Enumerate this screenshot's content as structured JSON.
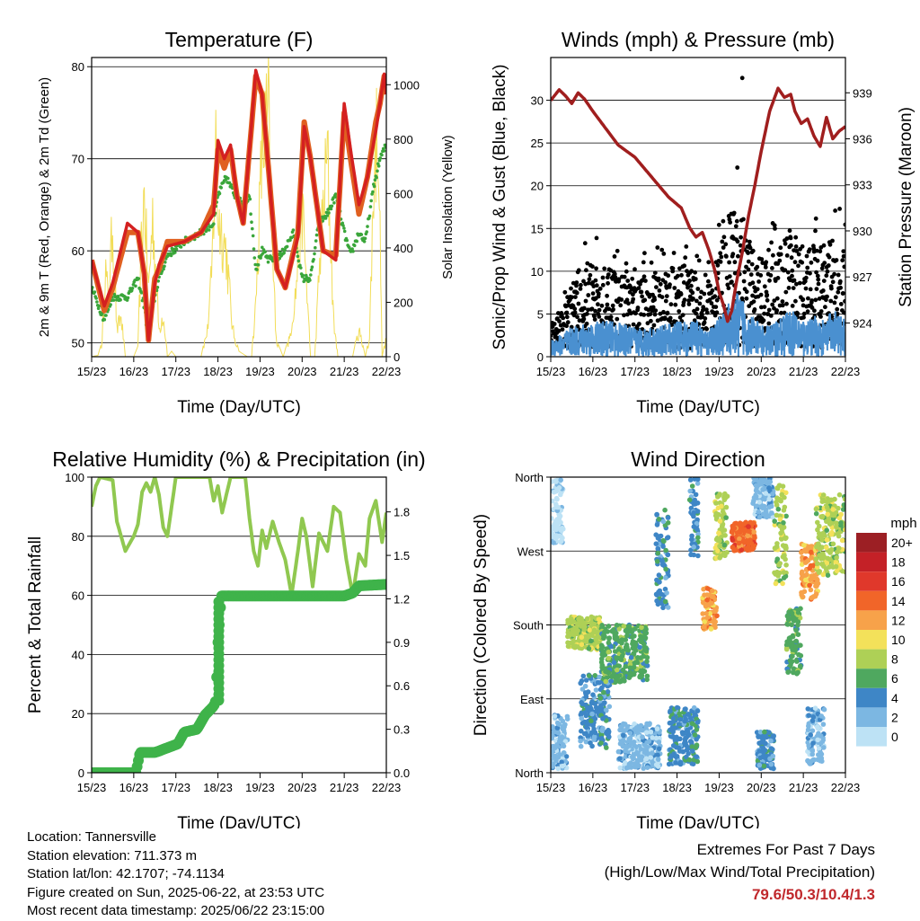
{
  "info": {
    "location": "Location: Tannersville",
    "elevation": "Station elevation: 711.373 m",
    "latlon": "Station lat/lon: 42.1707; -74.1134",
    "created": "Figure created on Sun, 2025-06-22, at 23:53 UTC",
    "recent": "Most recent data timestamp: 2025/06/22 23:15:00"
  },
  "extremes": {
    "title": "Extremes For Past 7 Days",
    "subtitle": "(High/Low/Max Wind/Total Precipitation)",
    "values": "79.6/50.3/10.4/1.3",
    "value_color": "#c0282c"
  },
  "chart_data": [
    {
      "type": "line",
      "title": "Temperature (F)",
      "xlabel": "Time (Day/UTC)",
      "ylabel": "2m & 9m T (Red, Orange) & 2m Td (Green)",
      "ylabel_right": "Solar Insolation (Yellow)",
      "x_ticks": [
        "15/23",
        "16/23",
        "17/23",
        "18/23",
        "19/23",
        "20/23",
        "21/23",
        "22/23"
      ],
      "xlim_days": [
        0,
        7
      ],
      "ylim": [
        48.5,
        81
      ],
      "y_ticks": [
        50,
        60,
        70,
        80
      ],
      "ylim_right": [
        0,
        1100
      ],
      "y_ticks_right": [
        0,
        200,
        400,
        600,
        800,
        1000
      ],
      "grid": "horizontal",
      "series": [
        {
          "color": "#e06020",
          "x": [
            0,
            0.3,
            0.5,
            0.85,
            1.1,
            1.25,
            1.35,
            1.5,
            1.6,
            1.8,
            2.2,
            2.6,
            2.9,
            3.0,
            3.15,
            3.3,
            3.45,
            3.6,
            3.75,
            3.9,
            4.05,
            4.2,
            4.4,
            4.6,
            4.9,
            5.05,
            5.2,
            5.5,
            5.8,
            6.0,
            6.15,
            6.35,
            6.55,
            6.75,
            6.85,
            6.95,
            7.0
          ],
          "y": [
            59,
            53.5,
            56,
            62,
            62,
            57.5,
            50.3,
            57,
            58,
            61,
            61,
            62,
            65,
            71,
            69,
            71,
            66,
            63,
            71,
            79,
            77,
            69,
            58,
            56,
            62,
            74,
            70,
            60,
            59.5,
            75,
            70,
            64,
            68,
            74,
            76,
            79,
            77
          ]
        },
        {
          "color": "#d42020",
          "x": [
            0,
            0.3,
            0.5,
            0.85,
            1.1,
            1.25,
            1.35,
            1.5,
            1.6,
            1.8,
            2.2,
            2.6,
            2.9,
            3.0,
            3.15,
            3.3,
            3.45,
            3.6,
            3.75,
            3.9,
            4.05,
            4.2,
            4.4,
            4.6,
            4.9,
            5.05,
            5.2,
            5.5,
            5.8,
            6.0,
            6.15,
            6.35,
            6.55,
            6.75,
            6.85,
            6.95,
            7.0
          ],
          "y": [
            59,
            54,
            56.5,
            63,
            62,
            57.5,
            50.3,
            56.5,
            58.5,
            60.5,
            61,
            62,
            64,
            72,
            70,
            71.5,
            66,
            63,
            71,
            79.6,
            77,
            69,
            58,
            56,
            61.5,
            73.5,
            70,
            60,
            59,
            76,
            71,
            65,
            68,
            73,
            76,
            79.2,
            77
          ]
        },
        {
          "color": "#3aa63a",
          "x": [
            0,
            0.3,
            0.5,
            0.85,
            1.1,
            1.25,
            1.35,
            1.5,
            1.6,
            1.8,
            2.2,
            2.6,
            2.9,
            3.0,
            3.2,
            3.4,
            3.6,
            3.75,
            3.9,
            4.05,
            4.2,
            4.5,
            4.8,
            5.0,
            5.2,
            5.4,
            5.6,
            5.8,
            6.0,
            6.15,
            6.35,
            6.5,
            6.7,
            6.85,
            7.0
          ],
          "y": [
            56,
            52.5,
            55,
            55,
            57,
            54,
            50.3,
            55,
            57,
            59.5,
            61,
            62,
            63,
            66,
            68,
            66,
            65,
            66,
            58,
            60,
            59,
            59.5,
            62,
            57,
            57,
            63,
            64,
            66,
            62,
            59.5,
            62,
            61,
            67,
            70,
            71.5
          ]
        },
        {
          "color": "#f2dd58",
          "axis": "right",
          "x": [
            0,
            0.15,
            0.25,
            0.32,
            0.4,
            0.5,
            0.6,
            0.7,
            0.8,
            1.0,
            1.1,
            1.18,
            1.25,
            1.35,
            1.45,
            1.6,
            1.7,
            1.8,
            1.9,
            2.0,
            2.2,
            2.4,
            2.6,
            2.75,
            2.85,
            2.95,
            3.0,
            3.2,
            3.35,
            3.5,
            3.7,
            3.8,
            3.9,
            4.05,
            4.2,
            4.3,
            4.4,
            4.55,
            4.7,
            4.85,
            5.0,
            5.2,
            5.3,
            5.45,
            5.6,
            5.75,
            5.85,
            5.95,
            6.0,
            6.2,
            6.35,
            6.5,
            6.6,
            6.7,
            6.8,
            6.9,
            7.0
          ],
          "y": [
            0,
            5,
            60,
            420,
            240,
            620,
            120,
            180,
            0,
            0,
            40,
            500,
            740,
            300,
            640,
            120,
            200,
            0,
            20,
            0,
            0,
            0,
            0,
            120,
            360,
            960,
            650,
            480,
            120,
            20,
            0,
            0,
            240,
            960,
            1090,
            420,
            60,
            0,
            80,
            300,
            700,
            0,
            0,
            540,
            920,
            160,
            0,
            0,
            0,
            0,
            120,
            0,
            80,
            800,
            1100,
            0,
            80
          ]
        }
      ]
    },
    {
      "type": "scatter",
      "title": "Winds (mph) & Pressure (mb)",
      "xlabel": "Time (Day/UTC)",
      "ylabel": "Sonic/Prop Wind & Gust (Blue, Black)",
      "ylabel_right": "Station Pressure (Maroon)",
      "x_ticks": [
        "15/23",
        "16/23",
        "17/23",
        "18/23",
        "19/23",
        "20/23",
        "21/23",
        "22/23"
      ],
      "xlim_days": [
        0,
        7
      ],
      "ylim": [
        0,
        35
      ],
      "y_ticks": [
        0,
        5,
        10,
        15,
        20,
        25,
        30
      ],
      "ylim_right": [
        921.8,
        941.3
      ],
      "y_ticks_right": [
        924,
        927,
        930,
        933,
        936,
        939
      ],
      "grid": "horizontal",
      "gust_envelope": {
        "color": "#000000",
        "x": [
          0,
          0.3,
          0.6,
          1.0,
          1.5,
          2.0,
          2.5,
          3.0,
          3.5,
          3.7,
          3.9,
          4.1,
          4.3,
          4.5,
          4.7,
          4.9,
          5.1,
          5.3,
          5.5,
          5.7,
          5.9,
          6.1,
          6.3,
          6.5,
          6.7,
          6.9,
          7.0
        ],
        "y": [
          3,
          5,
          9,
          10,
          9,
          8,
          9,
          10,
          9,
          7,
          11,
          15,
          16,
          17,
          13,
          11,
          10,
          11,
          13,
          14,
          13,
          12,
          13,
          12,
          13,
          12,
          11
        ]
      },
      "wind_envelope": {
        "color": "#4a90d0",
        "x": [
          0,
          0.5,
          1.0,
          1.5,
          2.0,
          2.5,
          3.0,
          3.5,
          3.7,
          3.9,
          4.1,
          4.3,
          4.5,
          4.7,
          4.9,
          5.1,
          5.3,
          5.5,
          5.7,
          5.9,
          6.1,
          6.3,
          6.5,
          6.7,
          6.9,
          7.0
        ],
        "y": [
          1.5,
          2.5,
          3,
          3,
          2.5,
          2.5,
          3,
          3,
          2,
          3,
          4,
          5,
          5.5,
          4,
          3,
          2.5,
          3,
          3.5,
          4,
          3.5,
          3,
          3.5,
          3,
          4,
          3.5,
          3
        ]
      },
      "pressure": {
        "color": "#a01e1e",
        "x": [
          0,
          0.2,
          0.35,
          0.5,
          0.65,
          0.8,
          1.0,
          1.3,
          1.6,
          2.0,
          2.4,
          2.8,
          3.1,
          3.3,
          3.45,
          3.6,
          3.75,
          3.9,
          4.0,
          4.1,
          4.2,
          4.3,
          4.4,
          4.55,
          4.7,
          4.85,
          5.0,
          5.2,
          5.4,
          5.55,
          5.7,
          5.8,
          5.95,
          6.1,
          6.25,
          6.4,
          6.55,
          6.7,
          6.85,
          7.0
        ],
        "y": [
          938.5,
          939.2,
          938.8,
          938.3,
          939.0,
          938.6,
          937.8,
          936.7,
          935.6,
          934.8,
          933.5,
          932.2,
          931.5,
          930.2,
          929.6,
          929.9,
          928.8,
          927.4,
          926.0,
          925.2,
          924.1,
          924.8,
          926.5,
          928.6,
          931.0,
          933.0,
          935.2,
          937.8,
          939.3,
          938.7,
          938.9,
          937.8,
          937.0,
          937.3,
          936.2,
          935.5,
          937.4,
          936.0,
          936.5,
          936.8
        ]
      },
      "max_gust": 32.6
    },
    {
      "type": "line",
      "title": "Relative Humidity (%) & Precipitation (in)",
      "xlabel": "Time (Day/UTC)",
      "ylabel": "Percent & Total Rainfall",
      "x_ticks": [
        "15/23",
        "16/23",
        "17/23",
        "18/23",
        "19/23",
        "20/23",
        "21/23",
        "22/23"
      ],
      "xlim_days": [
        0,
        7
      ],
      "ylim": [
        0,
        100
      ],
      "y_ticks": [
        0,
        20,
        40,
        60,
        80,
        100
      ],
      "ylim_right": [
        0,
        2.04
      ],
      "y_ticks_right": [
        "0.0",
        "0.3",
        "0.6",
        "0.9",
        "1.2",
        "1.5",
        "1.8"
      ],
      "grid": "horizontal",
      "series": [
        {
          "color": "#90c850",
          "x": [
            0,
            0.1,
            0.2,
            0.5,
            0.6,
            0.7,
            0.8,
            1.0,
            1.1,
            1.2,
            1.3,
            1.4,
            1.5,
            1.6,
            1.7,
            1.8,
            1.9,
            2.0,
            2.2,
            2.6,
            2.8,
            2.9,
            3.0,
            3.1,
            3.3,
            3.5,
            3.65,
            3.75,
            3.85,
            3.95,
            4.05,
            4.15,
            4.3,
            4.45,
            4.6,
            4.75,
            4.9,
            5.0,
            5.1,
            5.25,
            5.4,
            5.6,
            5.75,
            5.9,
            6.05,
            6.2,
            6.35,
            6.5,
            6.6,
            6.75,
            6.9,
            7.0
          ],
          "y": [
            90,
            97,
            100,
            99,
            85,
            80,
            75,
            80,
            84,
            95,
            98,
            95,
            100,
            94,
            83,
            80,
            90,
            100,
            100,
            100,
            100,
            92,
            97,
            88,
            100,
            100,
            100,
            86,
            75,
            70,
            82,
            76,
            85,
            78,
            72,
            60,
            75,
            86,
            80,
            63,
            81,
            75,
            90,
            88,
            72,
            60,
            74,
            70,
            86,
            92,
            78,
            88
          ]
        },
        {
          "color": "#3fb34a",
          "axis": "right",
          "x": [
            0,
            1.05,
            1.15,
            1.5,
            1.6,
            2.05,
            2.2,
            2.5,
            2.7,
            2.9,
            2.95,
            3.0,
            3.05,
            3.08,
            4.0,
            5.0,
            6.0,
            6.2,
            6.35,
            7.0
          ],
          "y": [
            0,
            0,
            0.14,
            0.14,
            0.15,
            0.2,
            0.28,
            0.3,
            0.4,
            0.46,
            0.5,
            0.9,
            1.1,
            1.22,
            1.22,
            1.22,
            1.22,
            1.24,
            1.29,
            1.3
          ]
        }
      ]
    },
    {
      "type": "scatter",
      "title": "Wind Direction",
      "xlabel": "Time (Day/UTC)",
      "ylabel": "Direction (Colored By Speed)",
      "x_ticks": [
        "15/23",
        "16/23",
        "17/23",
        "18/23",
        "19/23",
        "20/23",
        "21/23",
        "22/23"
      ],
      "xlim_days": [
        0,
        7
      ],
      "ylim": [
        0,
        360
      ],
      "y_ticks": [
        "North",
        "East",
        "South",
        "West",
        "North"
      ],
      "grid": "horizontal",
      "clusters": [
        {
          "x0": 0.0,
          "x1": 0.4,
          "d0": 5,
          "d1": 70,
          "speed": 1
        },
        {
          "x0": 0.0,
          "x1": 0.3,
          "d0": 280,
          "d1": 360,
          "speed": 0
        },
        {
          "x0": 0.4,
          "x1": 1.2,
          "d0": 150,
          "d1": 190,
          "speed": 4
        },
        {
          "x0": 0.7,
          "x1": 1.4,
          "d0": 30,
          "d1": 120,
          "speed": 2
        },
        {
          "x0": 1.2,
          "x1": 2.3,
          "d0": 110,
          "d1": 180,
          "speed": 3
        },
        {
          "x0": 1.6,
          "x1": 2.6,
          "d0": 5,
          "d1": 60,
          "speed": 1
        },
        {
          "x0": 2.5,
          "x1": 2.8,
          "d0": 200,
          "d1": 320,
          "speed": 2
        },
        {
          "x0": 2.8,
          "x1": 3.5,
          "d0": 10,
          "d1": 80,
          "speed": 2
        },
        {
          "x0": 3.3,
          "x1": 3.5,
          "d0": 260,
          "d1": 360,
          "speed": 2
        },
        {
          "x0": 3.6,
          "x1": 3.95,
          "d0": 175,
          "d1": 225,
          "speed": 6
        },
        {
          "x0": 3.9,
          "x1": 4.2,
          "d0": 260,
          "d1": 340,
          "speed": 4
        },
        {
          "x0": 4.3,
          "x1": 4.85,
          "d0": 270,
          "d1": 305,
          "speed": 7
        },
        {
          "x0": 4.8,
          "x1": 5.3,
          "d0": 310,
          "d1": 360,
          "speed": 1
        },
        {
          "x0": 5.3,
          "x1": 5.6,
          "d0": 230,
          "d1": 350,
          "speed": 4
        },
        {
          "x0": 5.6,
          "x1": 5.95,
          "d0": 120,
          "d1": 200,
          "speed": 3
        },
        {
          "x0": 5.95,
          "x1": 6.35,
          "d0": 210,
          "d1": 280,
          "speed": 6
        },
        {
          "x0": 6.1,
          "x1": 6.5,
          "d0": 10,
          "d1": 80,
          "speed": 1
        },
        {
          "x0": 6.3,
          "x1": 7.0,
          "d0": 240,
          "d1": 340,
          "speed": 4
        },
        {
          "x0": 4.9,
          "x1": 5.3,
          "d0": 5,
          "d1": 50,
          "speed": 2
        }
      ],
      "legend": {
        "title": "mph",
        "labels": [
          "20+",
          "18",
          "16",
          "14",
          "12",
          "10",
          "8",
          "6",
          "4",
          "2",
          "0"
        ],
        "colors": [
          "#9c1f24",
          "#c42127",
          "#e0382b",
          "#f16529",
          "#f7a24a",
          "#f3e15a",
          "#aed056",
          "#4fa85f",
          "#3e86c6",
          "#7cb7e2",
          "#bde2f5"
        ],
        "placement": "right"
      }
    }
  ]
}
